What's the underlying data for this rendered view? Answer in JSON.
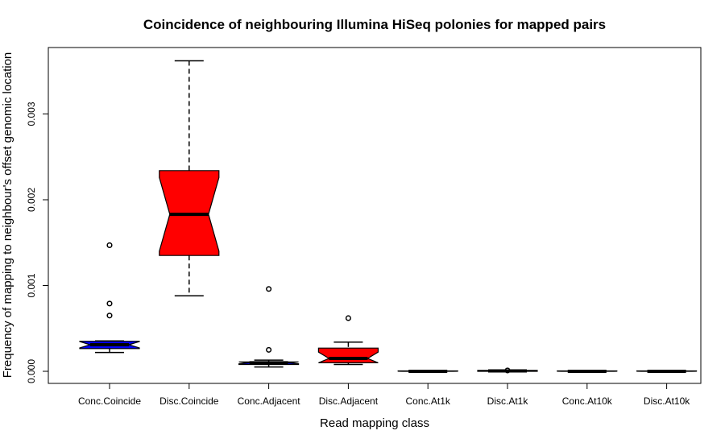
{
  "chart_data": {
    "type": "boxplot",
    "title": "Coincidence of neighbouring Illumina HiSeq polonies for mapped pairs",
    "xlabel": "Read mapping class",
    "ylabel": "Frequency of mapping to neighbour's offset genomic location",
    "yticks": [
      "0.000",
      "0.001",
      "0.002",
      "0.003"
    ],
    "ylim": [
      -0.00015,
      0.00378
    ],
    "notched": true,
    "grid": false,
    "boxes": [
      {
        "category": "Conc.Coincide",
        "color": "#0000ff",
        "whisker_low": 0.00022,
        "q1": 0.000265,
        "median": 0.00031,
        "q3": 0.00035,
        "whisker_high": 0.000355,
        "outliers": [
          0.00147,
          0.00079,
          0.00065
        ]
      },
      {
        "category": "Disc.Coincide",
        "color": "#ff0000",
        "whisker_low": 0.00088,
        "q1": 0.00135,
        "median": 0.00183,
        "q3": 0.00234,
        "whisker_high": 0.00362,
        "outliers": []
      },
      {
        "category": "Conc.Adjacent",
        "color": "#0000ff",
        "whisker_low": 5e-05,
        "q1": 8e-05,
        "median": 0.0001,
        "q3": 0.00011,
        "whisker_high": 0.00013,
        "outliers": [
          0.00096,
          0.00025
        ]
      },
      {
        "category": "Disc.Adjacent",
        "color": "#ff0000",
        "whisker_low": 8e-05,
        "q1": 0.0001,
        "median": 0.00015,
        "q3": 0.00027,
        "whisker_high": 0.00034,
        "outliers": [
          0.00062
        ]
      },
      {
        "category": "Conc.At1k",
        "color": "#0000ff",
        "whisker_low": 0.0,
        "q1": 0.0,
        "median": 0.0,
        "q3": 5e-06,
        "whisker_high": 1e-05,
        "outliers": []
      },
      {
        "category": "Disc.At1k",
        "color": "#ff0000",
        "whisker_low": 0.0,
        "q1": 0.0,
        "median": 5e-06,
        "q3": 1e-05,
        "whisker_high": 1e-05,
        "outliers": [
          1e-05
        ]
      },
      {
        "category": "Conc.At10k",
        "color": "#0000ff",
        "whisker_low": 0.0,
        "q1": 0.0,
        "median": 0.0,
        "q3": 5e-06,
        "whisker_high": 5e-06,
        "outliers": []
      },
      {
        "category": "Disc.At10k",
        "color": "#ff0000",
        "whisker_low": 0.0,
        "q1": 0.0,
        "median": 0.0,
        "q3": 5e-06,
        "whisker_high": 5e-06,
        "outliers": []
      }
    ]
  }
}
